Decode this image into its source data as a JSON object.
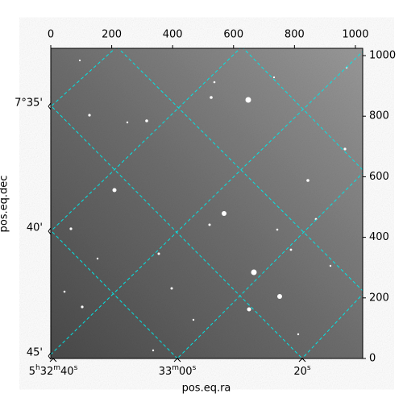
{
  "chart_data": {
    "type": "image",
    "x_label": "pos.eq.ra",
    "y_label": "pos.eq.dec",
    "x_world_ticks": [
      "5h32m40s",
      "33m00s",
      "20s"
    ],
    "y_world_ticks": [
      "7°35'",
      "40'",
      "45'"
    ],
    "xlim": [
      0,
      1024
    ],
    "xticks": [
      0,
      200,
      400,
      600,
      800,
      1000
    ],
    "y2lim": [
      0,
      1024
    ],
    "y2ticks": [
      0,
      200,
      400,
      600,
      800,
      1000
    ],
    "grid": true
  }
}
